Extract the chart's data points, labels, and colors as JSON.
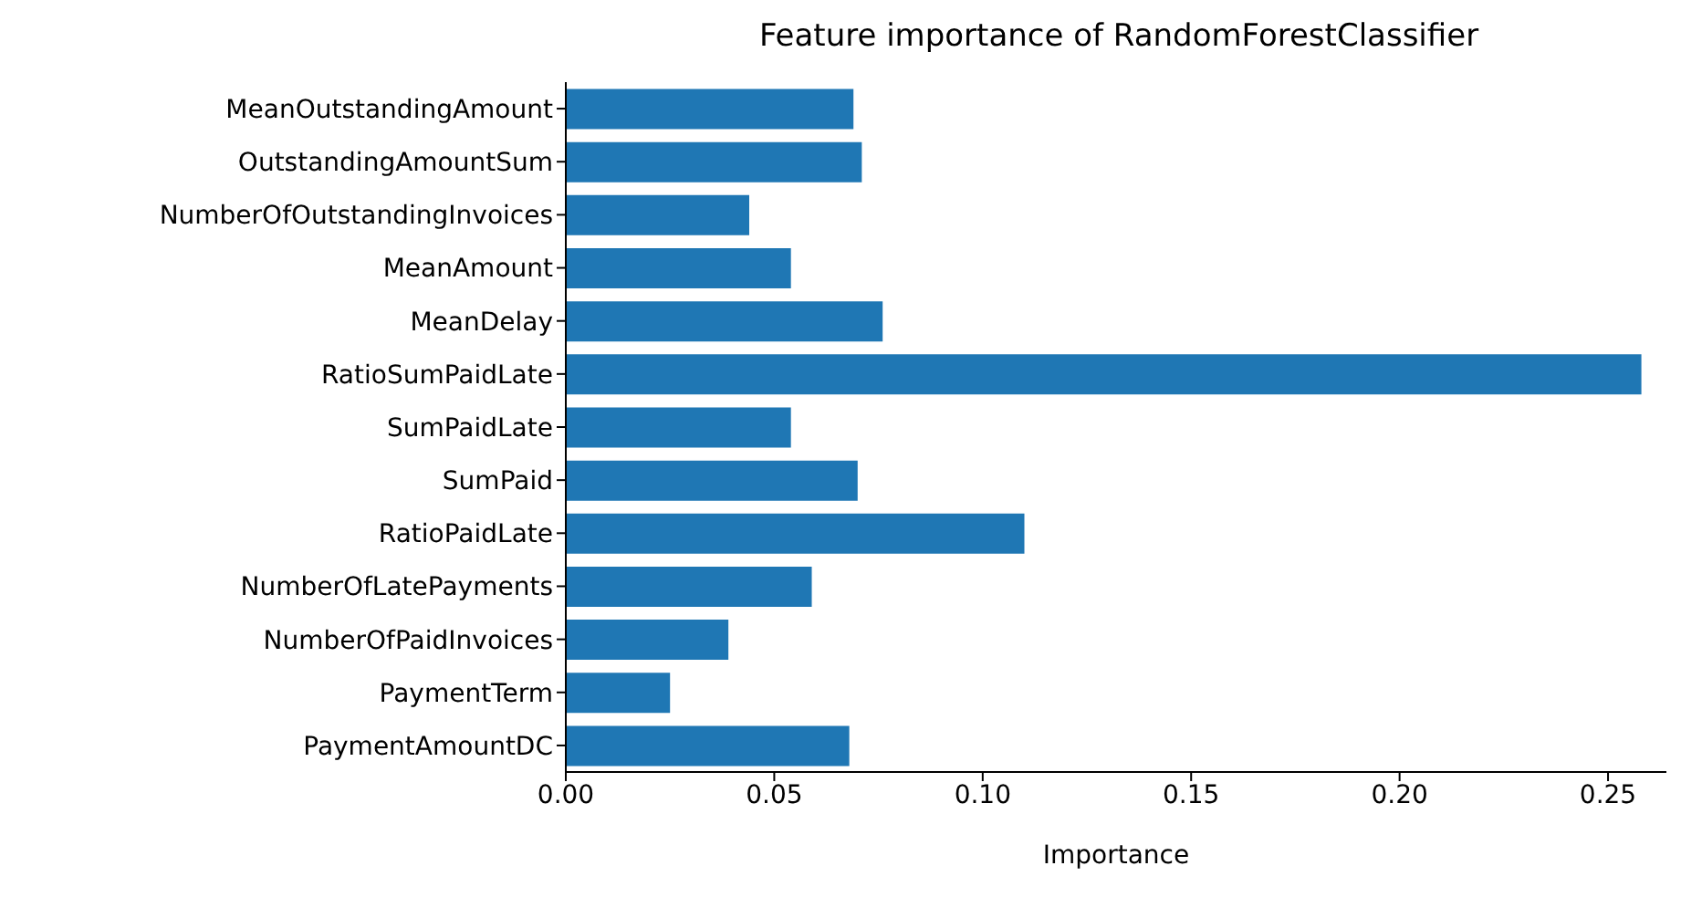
{
  "chart_data": {
    "type": "bar",
    "orientation": "horizontal",
    "title": "Feature importance of RandomForestClassifier",
    "xlabel": "Importance",
    "categories": [
      "MeanOutstandingAmount",
      "OutstandingAmountSum",
      "NumberOfOutstandingInvoices",
      "MeanAmount",
      "MeanDelay",
      "RatioSumPaidLate",
      "SumPaidLate",
      "SumPaid",
      "RatioPaidLate",
      "NumberOfLatePayments",
      "NumberOfPaidInvoices",
      "PaymentTerm",
      "PaymentAmountDC"
    ],
    "values": [
      0.069,
      0.071,
      0.044,
      0.054,
      0.076,
      0.258,
      0.054,
      0.07,
      0.11,
      0.059,
      0.039,
      0.025,
      0.068
    ],
    "color": "#1f77b4",
    "xlim": [
      0,
      0.264
    ],
    "xticks": [
      {
        "value": 0,
        "label": "0.00"
      },
      {
        "value": 0.05,
        "label": "0.05"
      },
      {
        "value": 0.1,
        "label": "0.10"
      },
      {
        "value": 0.15,
        "label": "0.15"
      },
      {
        "value": 0.2,
        "label": "0.20"
      },
      {
        "value": 0.25,
        "label": "0.25"
      }
    ],
    "grid": false,
    "legend": false
  }
}
